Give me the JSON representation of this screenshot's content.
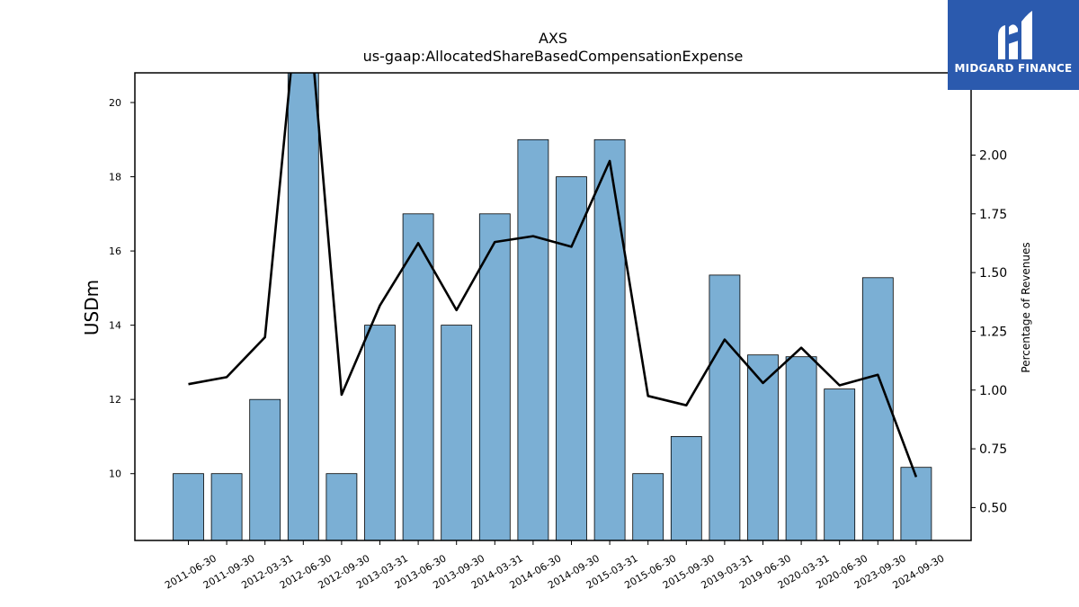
{
  "chart_data": {
    "type": "bar",
    "title": "AXS",
    "subtitle": "us-gaap:AllocatedShareBasedCompensationExpense",
    "xlabel": "",
    "ylabel": "USDm",
    "y2label": "Percentage of Revenues",
    "categories": [
      "2011-06-30",
      "2011-09-30",
      "2012-03-31",
      "2012-06-30",
      "2012-09-30",
      "2013-03-31",
      "2013-06-30",
      "2013-09-30",
      "2014-03-31",
      "2014-06-30",
      "2014-09-30",
      "2015-03-31",
      "2015-06-30",
      "2015-09-30",
      "2019-03-31",
      "2019-06-30",
      "2020-03-31",
      "2020-06-30",
      "2023-09-30",
      "2024-09-30"
    ],
    "series": [
      {
        "name": "",
        "axis": "left",
        "type": "bar",
        "values": [
          10,
          10,
          12,
          21,
          10,
          14,
          17,
          14,
          17,
          19,
          18,
          19,
          10,
          11,
          15.35,
          13.2,
          13.15,
          12.28,
          15.28,
          10.17
        ]
      },
      {
        "name": "",
        "axis": "right",
        "type": "line",
        "values": [
          1.025,
          1.055,
          1.225,
          2.9,
          0.98,
          1.36,
          1.625,
          1.34,
          1.63,
          1.655,
          1.61,
          1.975,
          0.975,
          0.935,
          1.215,
          1.03,
          1.18,
          1.02,
          1.065,
          0.63
        ]
      }
    ],
    "ylim": [
      8.2,
      20.8
    ],
    "y2lim": [
      0.36,
      2.35
    ],
    "yticks": [
      "10",
      "12",
      "14",
      "16",
      "18",
      "20"
    ],
    "y2ticks": [
      "0.50",
      "0.75",
      "1.00",
      "1.25",
      "1.50",
      "1.75",
      "2.00"
    ],
    "grid": false,
    "colors": {
      "bar": "#7bafd4",
      "bar_edge": "#000000",
      "line": "#000000",
      "logo_bg": "#2b5aae"
    }
  },
  "logo": {
    "text": "MIDGARD FINANCE",
    "icon": "midgard-logo-icon"
  }
}
